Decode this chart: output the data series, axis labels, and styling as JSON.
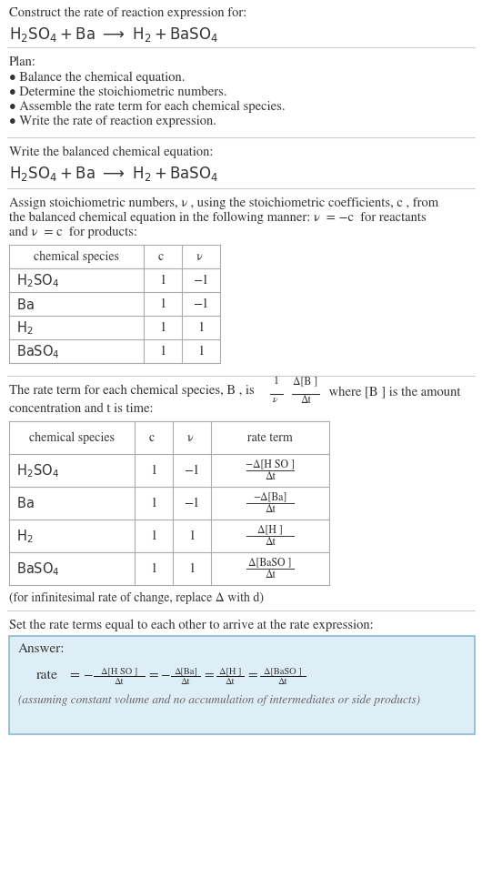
{
  "bg_color": "#ffffff",
  "text_color": "#333333",
  "dark_text": "#111111",
  "gray_text": "#666666",
  "answer_box_color": "#deeef6",
  "answer_box_border": "#8ab8d0",
  "line_color": "#cccccc",
  "table_line_color": "#aaaaaa",
  "title_line1": "Construct the rate of reaction expression for:",
  "plan_header": "Plan:",
  "plan_items": [
    "• Balance the chemical equation.",
    "• Determine the stoichiometric numbers.",
    "• Assemble the rate term for each chemical species.",
    "• Write the rate of reaction expression."
  ],
  "section2_header": "Write the balanced chemical equation:",
  "section3_lines": [
    "Assign stoichiometric numbers, νᵢ, using the stoichiometric coefficients, cᵢ, from",
    "the balanced chemical equation in the following manner: νᵢ = −cᵢ for reactants",
    "and νᵢ = cᵢ for products:"
  ],
  "table1_headers": [
    "chemical species",
    "cᵢ",
    "νᵢ"
  ],
  "table1_rows": [
    [
      "H₂SO₄",
      "1",
      "−1"
    ],
    [
      "Ba",
      "1",
      "−1"
    ],
    [
      "H₂",
      "1",
      "1"
    ],
    [
      "BaSO₄",
      "1",
      "1"
    ]
  ],
  "section4_pre": "The rate term for each chemical species, Bᵢ, is ",
  "section4_post": " where [Bᵢ] is the amount",
  "section4_line2": "concentration and t is time:",
  "table2_headers": [
    "chemical species",
    "cᵢ",
    "νᵢ",
    "rate term"
  ],
  "table2_rows": [
    [
      "H₂SO₄",
      "1",
      "−1",
      [
        "−Δ[H₂SO₄]",
        "Δt"
      ]
    ],
    [
      "Ba",
      "1",
      "−1",
      [
        "−Δ[Ba]",
        "Δt"
      ]
    ],
    [
      "H₂",
      "1",
      "1",
      [
        "Δ[H₂]",
        "Δt"
      ]
    ],
    [
      "BaSO₄",
      "1",
      "1",
      [
        "Δ[BaSO₄]",
        "Δt"
      ]
    ]
  ],
  "infinitesimal_note": "(for infinitesimal rate of change, replace Δ with d)",
  "section5_header": "Set the rate terms equal to each other to arrive at the rate expression:",
  "answer_label": "Answer:",
  "answer_terms": [
    [
      "−Δ[H₂SO₄]",
      "Δt"
    ],
    [
      "−Δ[Ba]",
      "Δt"
    ],
    [
      "Δ[H₂]",
      "Δt"
    ],
    [
      "Δ[BaSO₄]",
      "Δt"
    ]
  ],
  "answer_note": "(assuming constant volume and no accumulation of intermediates or side products)"
}
